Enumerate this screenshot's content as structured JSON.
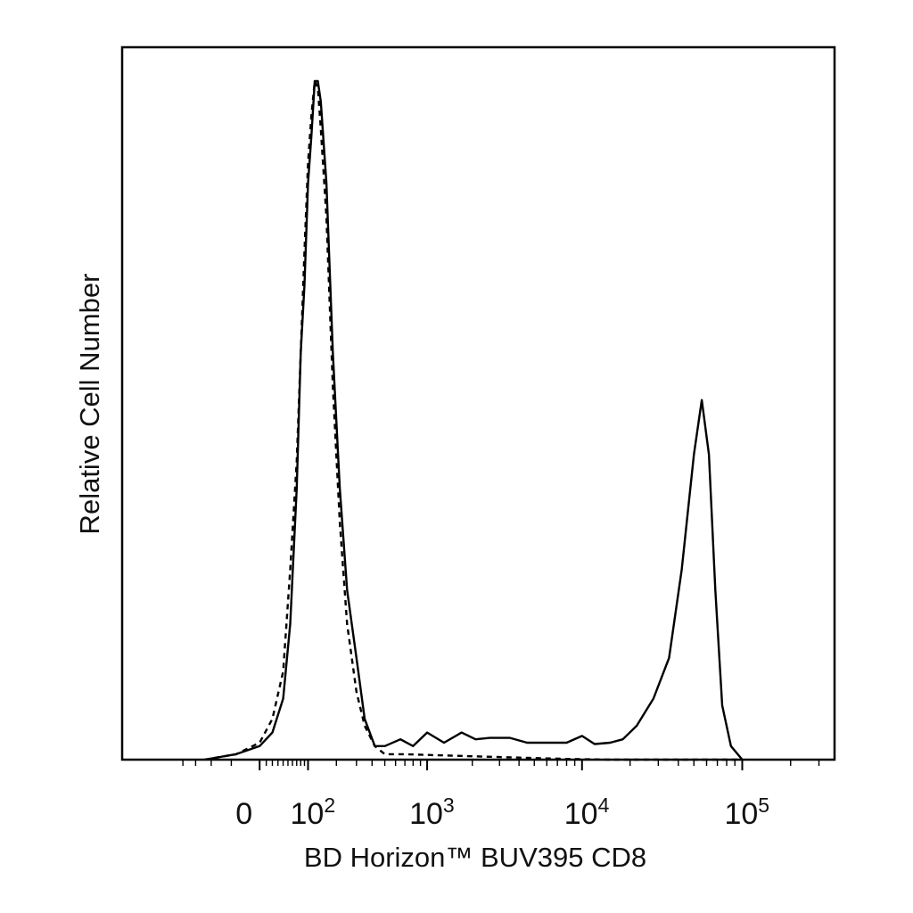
{
  "chart_data": {
    "type": "line",
    "title": "",
    "xlabel": "BD Horizon™ BUV395 CD8",
    "ylabel": "Relative Cell Number",
    "x_scale": "biexponential",
    "x_ticks": [
      {
        "value": 0,
        "label": "0"
      },
      {
        "value": 100,
        "label": "10",
        "exponent": "2"
      },
      {
        "value": 1000,
        "label": "10",
        "exponent": "3"
      },
      {
        "value": 10000,
        "label": "10",
        "exponent": "4"
      },
      {
        "value": 100000,
        "label": "10",
        "exponent": "5"
      }
    ],
    "xlim": [
      -200,
      250000
    ],
    "ylim": [
      0,
      105
    ],
    "grid": false,
    "legend": "none",
    "series": [
      {
        "style": "solid",
        "color": "#000000",
        "points": [
          [
            -120,
            0
          ],
          [
            -40,
            0.8
          ],
          [
            0,
            2
          ],
          [
            20,
            4
          ],
          [
            40,
            9
          ],
          [
            55,
            20
          ],
          [
            70,
            40
          ],
          [
            80,
            60
          ],
          [
            90,
            70
          ],
          [
            100,
            85
          ],
          [
            110,
            92
          ],
          [
            120,
            100
          ],
          [
            130,
            100
          ],
          [
            140,
            97
          ],
          [
            160,
            85
          ],
          [
            185,
            60
          ],
          [
            215,
            40
          ],
          [
            250,
            25
          ],
          [
            300,
            15
          ],
          [
            350,
            6
          ],
          [
            420,
            2
          ],
          [
            500,
            2
          ],
          [
            650,
            3
          ],
          [
            800,
            2
          ],
          [
            1000,
            4
          ],
          [
            1300,
            2.5
          ],
          [
            1700,
            4
          ],
          [
            2100,
            3
          ],
          [
            2600,
            3.2
          ],
          [
            3500,
            3.2
          ],
          [
            4500,
            2.5
          ],
          [
            6000,
            2.5
          ],
          [
            8000,
            2.5
          ],
          [
            10000,
            3.5
          ],
          [
            12000,
            2.3
          ],
          [
            15000,
            2.5
          ],
          [
            18000,
            3
          ],
          [
            22000,
            5
          ],
          [
            28000,
            9
          ],
          [
            35000,
            15
          ],
          [
            42000,
            28
          ],
          [
            50000,
            45
          ],
          [
            56000,
            53
          ],
          [
            62000,
            45
          ],
          [
            68000,
            25
          ],
          [
            75000,
            8
          ],
          [
            85000,
            2
          ],
          [
            100000,
            0
          ]
        ]
      },
      {
        "style": "dashed",
        "color": "#000000",
        "points": [
          [
            -120,
            0
          ],
          [
            -40,
            0.8
          ],
          [
            0,
            2.5
          ],
          [
            20,
            6
          ],
          [
            40,
            13
          ],
          [
            55,
            28
          ],
          [
            70,
            44
          ],
          [
            80,
            60
          ],
          [
            90,
            75
          ],
          [
            100,
            88
          ],
          [
            110,
            95
          ],
          [
            120,
            100
          ],
          [
            130,
            99
          ],
          [
            140,
            93
          ],
          [
            160,
            80
          ],
          [
            185,
            55
          ],
          [
            215,
            35
          ],
          [
            250,
            20
          ],
          [
            300,
            10
          ],
          [
            350,
            5
          ],
          [
            420,
            2
          ],
          [
            500,
            0.8
          ],
          [
            700,
            0.8
          ],
          [
            1000,
            0.7
          ],
          [
            2000,
            0.5
          ],
          [
            4000,
            0.3
          ],
          [
            8000,
            0.1
          ],
          [
            15000,
            0
          ],
          [
            100000,
            0
          ]
        ]
      }
    ]
  }
}
